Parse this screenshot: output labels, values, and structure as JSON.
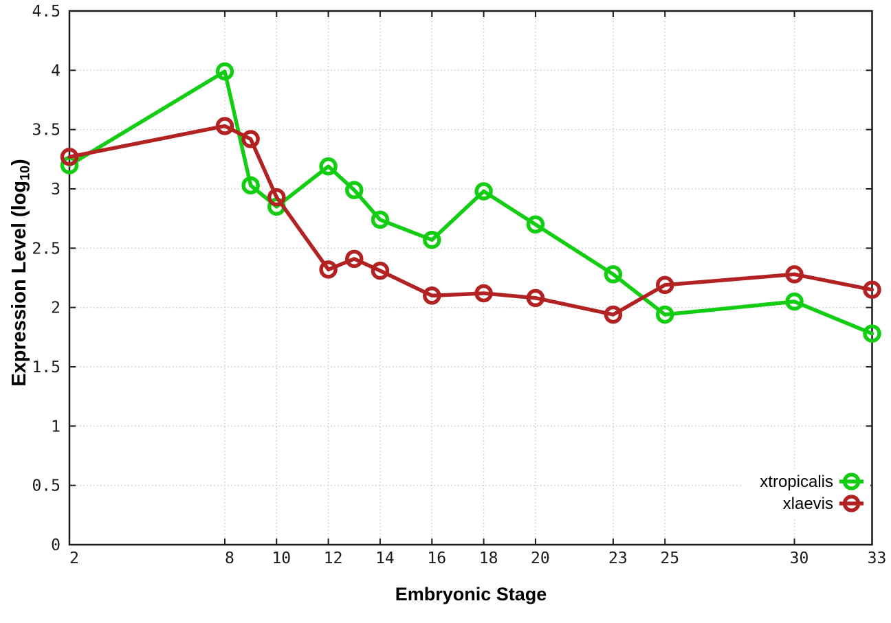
{
  "chart": {
    "xlabel": "Embryonic Stage",
    "ylabel_pre": "Expression Level (log",
    "ylabel_sub": "10",
    "ylabel_post": ")"
  },
  "chart_data": {
    "type": "line",
    "title": "",
    "xlabel": "Embryonic Stage",
    "ylabel": "Expression Level (log10)",
    "x": [
      2,
      8,
      9,
      10,
      12,
      13,
      14,
      16,
      18,
      20,
      23,
      25,
      30,
      33
    ],
    "series": [
      {
        "name": "xtropicalis",
        "color": "#13cd13",
        "marker": "open-circle",
        "values": [
          3.2,
          3.99,
          3.03,
          2.85,
          3.19,
          2.99,
          2.74,
          2.57,
          2.98,
          2.7,
          2.28,
          1.94,
          2.05,
          1.78
        ]
      },
      {
        "name": "xlaevis",
        "color": "#b22222",
        "marker": "open-circle",
        "values": [
          3.27,
          3.53,
          3.42,
          2.93,
          2.32,
          2.41,
          2.31,
          2.1,
          2.12,
          2.08,
          1.94,
          2.19,
          2.28,
          2.15
        ]
      }
    ],
    "xlim": [
      2,
      33
    ],
    "ylim": [
      0,
      4.5
    ],
    "x_ticks": {
      "values": [
        2,
        8,
        10,
        12,
        14,
        16,
        18,
        20,
        23,
        25,
        30,
        33
      ],
      "labels": [
        "2",
        "8",
        "10",
        "12",
        "14",
        "16",
        "18",
        "20",
        "23",
        "25",
        "30",
        "33"
      ]
    },
    "y_ticks": {
      "values": [
        0,
        0.5,
        1,
        1.5,
        2,
        2.5,
        3,
        3.5,
        4,
        4.5
      ],
      "labels": [
        "0",
        "0.5",
        "1",
        "1.5",
        "2",
        "2.5",
        "3",
        "3.5",
        "4",
        "4.5"
      ]
    },
    "grid": true,
    "legend_position": "bottom-right-inside",
    "colors": {
      "grid": "#c9c9c9",
      "border": "#1a1a1a",
      "tick_label": "#1a1a1a",
      "axis_label": "#000000",
      "background": "#ffffff"
    }
  }
}
